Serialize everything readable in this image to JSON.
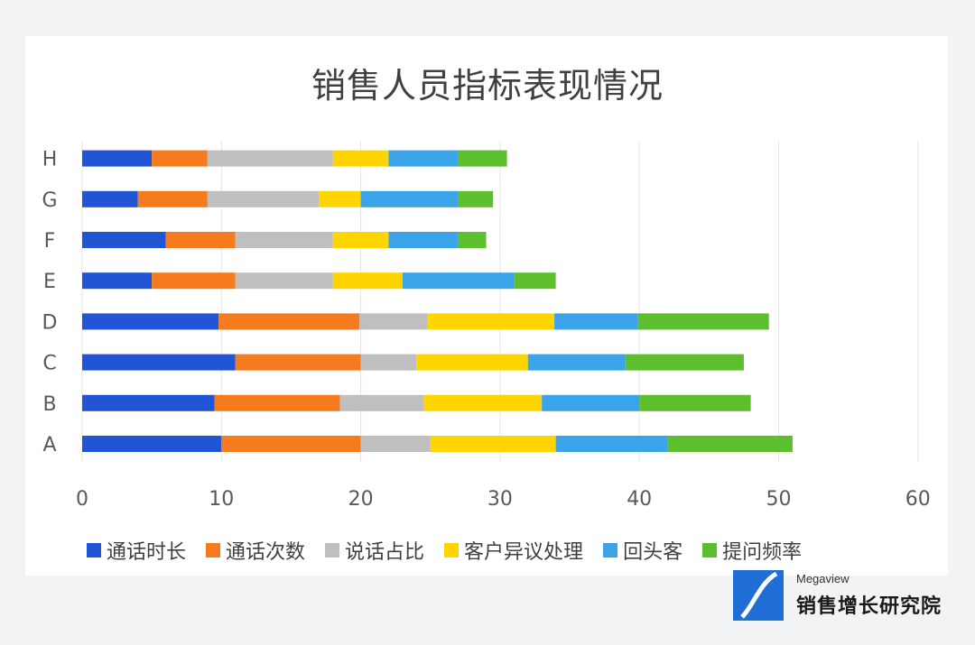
{
  "chart_data": {
    "type": "bar",
    "orientation": "horizontal",
    "stacked": true,
    "title": "销售人员指标表现情况",
    "categories": [
      "A",
      "B",
      "C",
      "D",
      "E",
      "F",
      "G",
      "H"
    ],
    "series": [
      {
        "name": "通话时长",
        "color": "#2155d6",
        "values": [
          10,
          9.5,
          11,
          9.8,
          5,
          6,
          4,
          5
        ]
      },
      {
        "name": "通话次数",
        "color": "#f57b1e",
        "values": [
          10,
          9,
          9,
          10.1,
          6,
          5,
          5,
          4
        ]
      },
      {
        "name": "说话占比",
        "color": "#bfbfbf",
        "values": [
          5,
          6,
          4,
          4.9,
          7,
          7,
          8,
          9
        ]
      },
      {
        "name": "客户异议处理",
        "color": "#ffd500",
        "values": [
          9,
          8.5,
          8,
          9.1,
          5,
          4,
          3,
          4
        ]
      },
      {
        "name": "回头客",
        "color": "#3ba3e8",
        "values": [
          8,
          7,
          7,
          6,
          8,
          5,
          7,
          5
        ]
      },
      {
        "name": "提问频率",
        "color": "#5dbf2e",
        "values": [
          9,
          8,
          8.5,
          9.4,
          3,
          2,
          2.5,
          3.5
        ]
      }
    ],
    "xlim": [
      0,
      60
    ],
    "xticks": [
      0,
      10,
      20,
      30,
      40,
      50,
      60
    ],
    "grid": "vertical",
    "legend": "bottom"
  },
  "brand": {
    "sub": "Megaview",
    "main": "销售增长研究院"
  }
}
